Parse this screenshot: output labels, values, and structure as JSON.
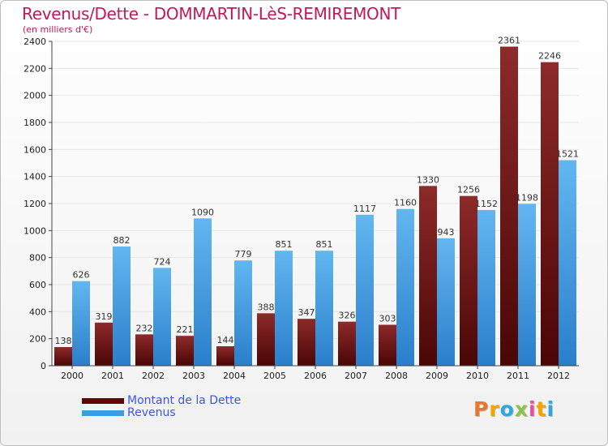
{
  "header": {
    "title": "Revenus/Dette - DOMMARTIN-LèS-REMIREMONT",
    "subtitle": "(en milliers d'€)"
  },
  "brand": {
    "text": "Proxiti",
    "letter_colors": [
      "#e8772e",
      "#f4a300",
      "#2ea7e0",
      "#8bc34a",
      "#e84f9b",
      "#f4a300",
      "#2ea7e0"
    ]
  },
  "colors": {
    "dette": "#6b1515",
    "revenus": "#3d9be0",
    "axis": "#444444",
    "grid": "#e6e6e6"
  },
  "chart_data": {
    "type": "bar",
    "title": "Revenus/Dette - DOMMARTIN-LèS-REMIREMONT",
    "categories": [
      "2000",
      "2001",
      "2002",
      "2003",
      "2004",
      "2005",
      "2006",
      "2007",
      "2008",
      "2009",
      "2010",
      "2011",
      "2012"
    ],
    "series": [
      {
        "name": "Montant de la Dette",
        "values": [
          138,
          319,
          232,
          221,
          144,
          388,
          347,
          326,
          303,
          1330,
          1256,
          2361,
          2246
        ]
      },
      {
        "name": "Revenus",
        "values": [
          626,
          882,
          724,
          1090,
          779,
          851,
          851,
          1117,
          1160,
          943,
          1152,
          1198,
          1521
        ]
      }
    ],
    "ylim": [
      0,
      2400
    ],
    "yticks": [
      0,
      200,
      400,
      600,
      800,
      1000,
      1200,
      1400,
      1600,
      1800,
      2000,
      2200,
      2400
    ],
    "grid": true,
    "legend_position": "bottom-left"
  }
}
